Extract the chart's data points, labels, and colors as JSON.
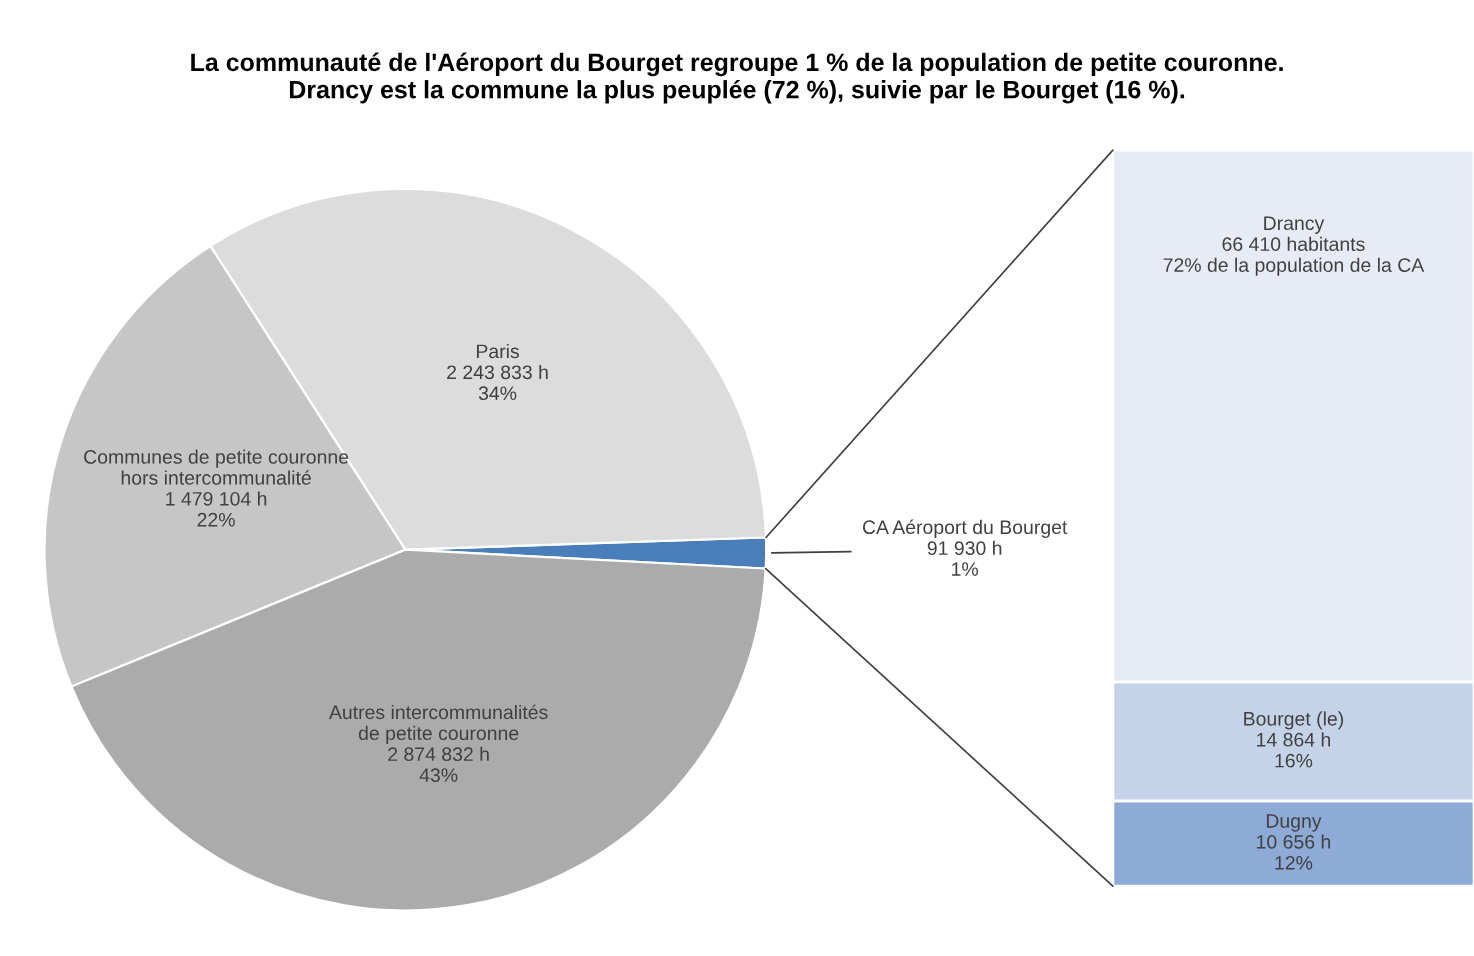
{
  "chart_data": [
    {
      "type": "pie",
      "title": "La communauté de l'Aéroport du Bourget regroupe 1 % de la population de petite couronne.\nDrancy est la commune la plus peuplée (72 %), suivie par le Bourget (16 %).",
      "categories": [
        "CA Aéroport du Bourget",
        "Paris",
        "Communes de petite couronne\nhors intercommunalité",
        "Autres intercommunalités\nde petite couronne"
      ],
      "values": [
        91930,
        2243833,
        1479104,
        2874832
      ],
      "value_labels": [
        "91 930 h\n1%",
        "2 243 833 h\n34%",
        "1 479 104 h\n22%",
        "2 874 832 h\n43%"
      ],
      "colors": [
        "#4a7ebb",
        "#dcdcdc",
        "#c6c6c6",
        "#ababab"
      ]
    },
    {
      "type": "bar",
      "stacked": true,
      "categories": [
        null
      ],
      "series": [
        {
          "name": "Dugny",
          "color": "#8eaad6",
          "values": [
            10656
          ],
          "value_labels": [
            "10 656 h\n12%"
          ]
        },
        {
          "name": "Bourget (le)",
          "color": "#c5d3e8",
          "values": [
            14864
          ],
          "value_labels": [
            "14 864 h\n16%"
          ]
        },
        {
          "name": "Drancy",
          "color": "#e6ebf5",
          "values": [
            66410
          ],
          "value_labels": [
            "66 410 habitants\n72% de la population de la CA"
          ]
        }
      ]
    }
  ]
}
